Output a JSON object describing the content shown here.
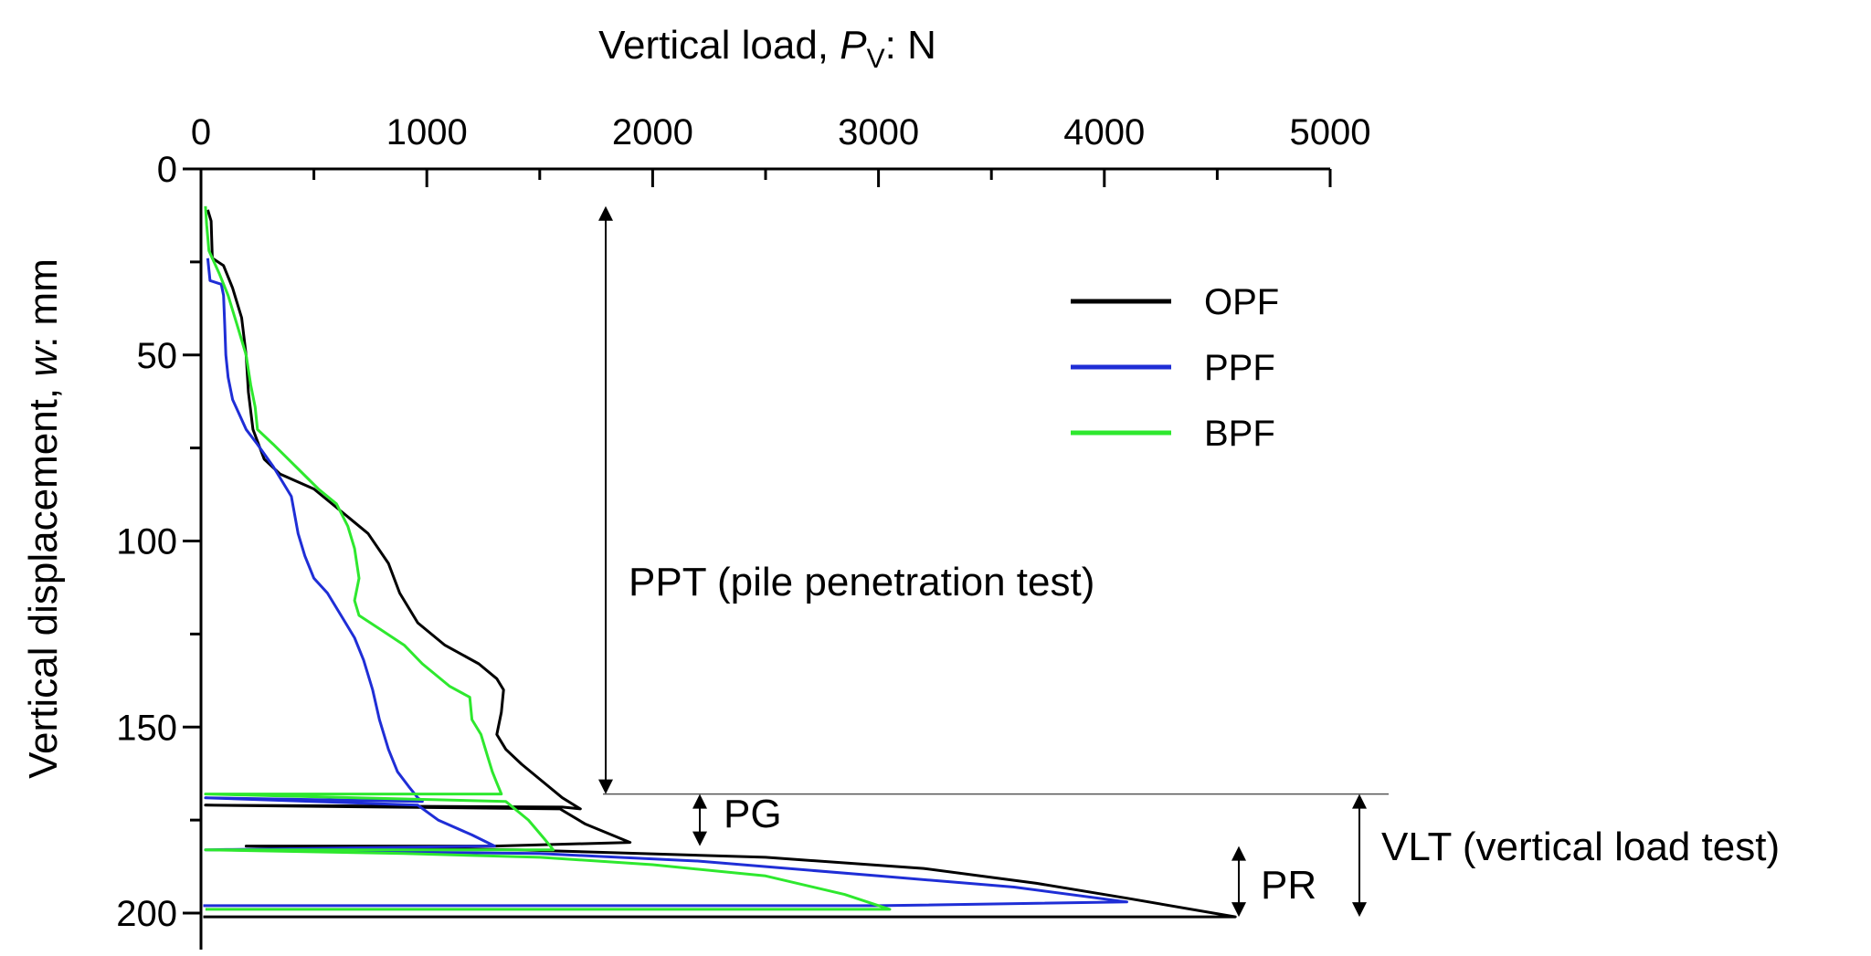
{
  "chart_data": {
    "type": "line",
    "xlabel": {
      "prefix": "Vertical load, ",
      "symbol": "P",
      "subscript": "V",
      "suffix": ": N"
    },
    "ylabel": {
      "prefix": "Vertical displacement, ",
      "symbol": "w",
      "suffix": ": mm"
    },
    "xlim": [
      0,
      5000
    ],
    "ylim": [
      0,
      200
    ],
    "x_ticks": [
      "0",
      "1000",
      "2000",
      "3000",
      "4000",
      "5000"
    ],
    "y_ticks": [
      "0",
      "50",
      "100",
      "150",
      "200"
    ],
    "grid": false,
    "legend_position": "top-right",
    "series": [
      {
        "name": "OPF",
        "color": "#000000",
        "points": [
          [
            30,
            11
          ],
          [
            45,
            14
          ],
          [
            50,
            24
          ],
          [
            100,
            26
          ],
          [
            140,
            32
          ],
          [
            180,
            40
          ],
          [
            200,
            50
          ],
          [
            210,
            60
          ],
          [
            230,
            70
          ],
          [
            280,
            78
          ],
          [
            350,
            82
          ],
          [
            500,
            86
          ],
          [
            620,
            92
          ],
          [
            740,
            98
          ],
          [
            830,
            106
          ],
          [
            880,
            114
          ],
          [
            960,
            122
          ],
          [
            1080,
            128
          ],
          [
            1230,
            133
          ],
          [
            1310,
            137
          ],
          [
            1340,
            140
          ],
          [
            1330,
            146
          ],
          [
            1310,
            152
          ],
          [
            1350,
            156
          ],
          [
            1420,
            160
          ],
          [
            1520,
            165
          ],
          [
            1600,
            169
          ],
          [
            1680,
            172
          ],
          [
            1600,
            171.5
          ],
          [
            20,
            171
          ],
          [
            1590,
            172
          ],
          [
            1700,
            176
          ],
          [
            1900,
            181
          ],
          [
            1300,
            182
          ],
          [
            200,
            182
          ],
          [
            1400,
            183
          ],
          [
            2500,
            185
          ],
          [
            3200,
            188
          ],
          [
            3700,
            192
          ],
          [
            4100,
            196
          ],
          [
            4580,
            201
          ],
          [
            3000,
            201
          ],
          [
            10,
            201
          ]
        ]
      },
      {
        "name": "PPF",
        "color": "#1f2ed6",
        "points": [
          [
            30,
            24
          ],
          [
            40,
            30
          ],
          [
            90,
            31
          ],
          [
            100,
            34
          ],
          [
            105,
            42
          ],
          [
            110,
            50
          ],
          [
            120,
            56
          ],
          [
            140,
            62
          ],
          [
            170,
            66
          ],
          [
            200,
            70
          ],
          [
            250,
            74
          ],
          [
            320,
            80
          ],
          [
            400,
            88
          ],
          [
            430,
            98
          ],
          [
            460,
            104
          ],
          [
            500,
            110
          ],
          [
            560,
            114
          ],
          [
            620,
            120
          ],
          [
            680,
            126
          ],
          [
            720,
            132
          ],
          [
            760,
            140
          ],
          [
            790,
            148
          ],
          [
            830,
            156
          ],
          [
            870,
            162
          ],
          [
            920,
            166
          ],
          [
            960,
            169
          ],
          [
            980,
            170
          ],
          [
            20,
            169
          ],
          [
            960,
            171
          ],
          [
            1050,
            175
          ],
          [
            1200,
            179
          ],
          [
            1300,
            182
          ],
          [
            20,
            183
          ],
          [
            1500,
            184
          ],
          [
            2200,
            186
          ],
          [
            3000,
            190
          ],
          [
            3600,
            193
          ],
          [
            4100,
            197
          ],
          [
            3000,
            198
          ],
          [
            10,
            198
          ]
        ]
      },
      {
        "name": "BPF",
        "color": "#2ee82e",
        "points": [
          [
            20,
            10
          ],
          [
            25,
            15
          ],
          [
            35,
            22
          ],
          [
            50,
            24
          ],
          [
            80,
            28
          ],
          [
            120,
            34
          ],
          [
            160,
            42
          ],
          [
            200,
            50
          ],
          [
            220,
            58
          ],
          [
            240,
            64
          ],
          [
            250,
            70
          ],
          [
            320,
            74
          ],
          [
            420,
            80
          ],
          [
            520,
            86
          ],
          [
            600,
            90
          ],
          [
            650,
            96
          ],
          [
            680,
            102
          ],
          [
            700,
            110
          ],
          [
            680,
            116
          ],
          [
            700,
            120
          ],
          [
            800,
            124
          ],
          [
            900,
            128
          ],
          [
            980,
            133
          ],
          [
            1100,
            139
          ],
          [
            1190,
            142
          ],
          [
            1200,
            148
          ],
          [
            1240,
            152
          ],
          [
            1270,
            158
          ],
          [
            1290,
            162
          ],
          [
            1310,
            165
          ],
          [
            1330,
            168
          ],
          [
            800,
            168
          ],
          [
            20,
            168
          ],
          [
            1350,
            170
          ],
          [
            1450,
            175
          ],
          [
            1520,
            180
          ],
          [
            1560,
            183
          ],
          [
            1000,
            183
          ],
          [
            20,
            183
          ],
          [
            900,
            184
          ],
          [
            1500,
            185
          ],
          [
            2000,
            187
          ],
          [
            2500,
            190
          ],
          [
            2850,
            195
          ],
          [
            3050,
            199
          ],
          [
            1500,
            199
          ],
          [
            20,
            199
          ]
        ]
      }
    ],
    "annotations": [
      {
        "label": "PPT (pile penetration test)",
        "from": 10,
        "to": 168
      },
      {
        "label": "PG",
        "from": 168,
        "to": 182
      },
      {
        "label": "PR",
        "from": 182,
        "to": 201
      },
      {
        "label": "VLT (vertical load test)",
        "from": 168,
        "to": 201
      }
    ]
  }
}
